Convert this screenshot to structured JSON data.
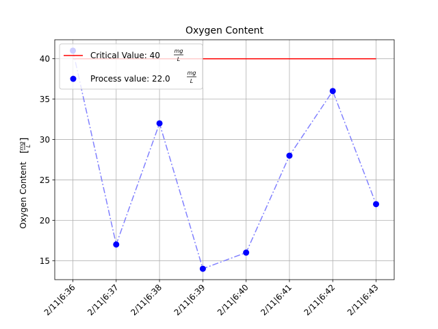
{
  "chart_data": {
    "type": "line",
    "title": "Oxygen Content",
    "ylabel": "Oxygen Content",
    "ylabel_unit": {
      "num": "mg",
      "den": "L"
    },
    "xlabel": "",
    "categories": [
      "2/11|6:36",
      "2/11|6:37",
      "2/11|6:38",
      "2/11|6:39",
      "2/11|6:40",
      "2/11|6:41",
      "2/11|6:42",
      "2/11|6:43"
    ],
    "y_ticks": [
      15,
      20,
      25,
      30,
      35,
      40
    ],
    "ylim": [
      12.65,
      42.35
    ],
    "grid": true,
    "legend_placement": "upper-left",
    "series": [
      {
        "name": "Critical Value: 40",
        "unit": {
          "num": "mg",
          "den": "L"
        },
        "style": "solid line",
        "color": "#ff0000",
        "values": [
          40,
          40,
          40,
          40,
          40,
          40,
          40,
          40
        ]
      },
      {
        "name": "Process value: 22.0",
        "unit": {
          "num": "mg",
          "den": "L"
        },
        "style": "dash-dot line with points",
        "line_color": "#8080ff",
        "marker_color": "#0000ff",
        "values": [
          41,
          17,
          32,
          14,
          16,
          28,
          36,
          22
        ]
      }
    ]
  }
}
